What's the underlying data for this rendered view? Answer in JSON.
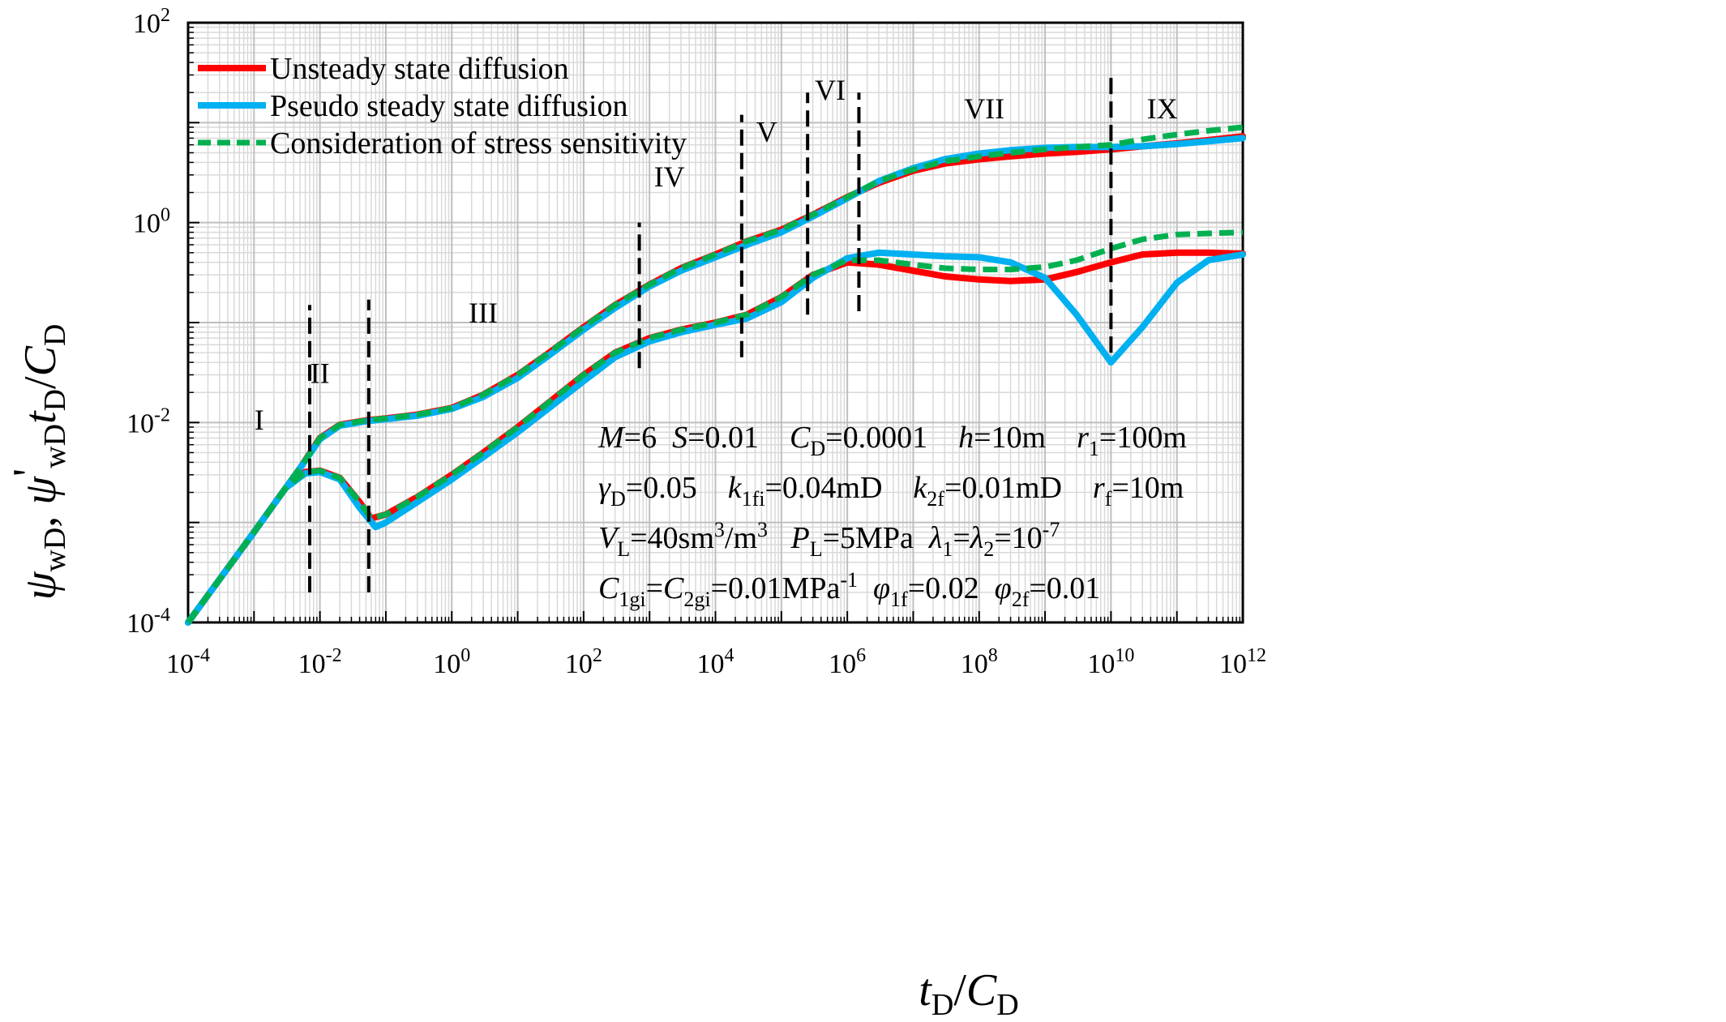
{
  "chart_data": {
    "type": "line",
    "xscale": "log",
    "yscale": "log",
    "xlabel": "t_D/C_D",
    "ylabel": "ψ_wD, ψ'_wD t_D/C_D",
    "xlim": [
      0.0001,
      1000000000000
    ],
    "ylim": [
      0.0001,
      100
    ],
    "grid": true,
    "legend_position": "top-left",
    "x_ticks": [
      {
        "base": "10",
        "exp": "-4"
      },
      {
        "base": "10",
        "exp": "-2"
      },
      {
        "base": "10",
        "exp": "0"
      },
      {
        "base": "10",
        "exp": "2"
      },
      {
        "base": "10",
        "exp": "4"
      },
      {
        "base": "10",
        "exp": "6"
      },
      {
        "base": "10",
        "exp": "8"
      },
      {
        "base": "10",
        "exp": "10"
      },
      {
        "base": "10",
        "exp": "12"
      }
    ],
    "y_ticks": [
      {
        "base": "10",
        "exp": "-4"
      },
      {
        "base": "10",
        "exp": "-2"
      },
      {
        "base": "10",
        "exp": "0"
      },
      {
        "base": "10",
        "exp": "2"
      }
    ],
    "series": [
      {
        "name": "Unsteady state diffusion",
        "color": "#ff0000",
        "style": "solid",
        "pressure": [
          [
            0.0001,
            0.0001
          ],
          [
            0.001,
            0.0008
          ],
          [
            0.003,
            0.0022
          ],
          [
            0.005,
            0.0035
          ],
          [
            0.01,
            0.007
          ],
          [
            0.02,
            0.0095
          ],
          [
            0.05,
            0.0105
          ],
          [
            0.1,
            0.011
          ],
          [
            0.3,
            0.012
          ],
          [
            1,
            0.014
          ],
          [
            3,
            0.019
          ],
          [
            10,
            0.03
          ],
          [
            30,
            0.05
          ],
          [
            100,
            0.09
          ],
          [
            300,
            0.15
          ],
          [
            1000,
            0.24
          ],
          [
            3000,
            0.35
          ],
          [
            10000,
            0.48
          ],
          [
            30000,
            0.65
          ],
          [
            100000,
            0.85
          ],
          [
            300000,
            1.2
          ],
          [
            1000000,
            1.8
          ],
          [
            3000000,
            2.5
          ],
          [
            10000000,
            3.3
          ],
          [
            30000000,
            3.9
          ],
          [
            100000000,
            4.3
          ],
          [
            300000000,
            4.6
          ],
          [
            1000000000,
            4.9
          ],
          [
            3000000000,
            5.1
          ],
          [
            10000000000,
            5.4
          ],
          [
            30000000000,
            5.8
          ],
          [
            100000000000,
            6.2
          ],
          [
            300000000000,
            6.7
          ],
          [
            1000000000000,
            7.3
          ]
        ],
        "derivative": [
          [
            0.0001,
            0.0001
          ],
          [
            0.001,
            0.0008
          ],
          [
            0.003,
            0.0022
          ],
          [
            0.006,
            0.0032
          ],
          [
            0.01,
            0.0033
          ],
          [
            0.02,
            0.0028
          ],
          [
            0.04,
            0.0016
          ],
          [
            0.06,
            0.0011
          ],
          [
            0.1,
            0.0012
          ],
          [
            0.3,
            0.0018
          ],
          [
            1,
            0.003
          ],
          [
            3,
            0.005
          ],
          [
            10,
            0.009
          ],
          [
            30,
            0.016
          ],
          [
            100,
            0.03
          ],
          [
            300,
            0.05
          ],
          [
            1000,
            0.07
          ],
          [
            3000,
            0.085
          ],
          [
            10000,
            0.1
          ],
          [
            30000,
            0.12
          ],
          [
            100000,
            0.18
          ],
          [
            300000,
            0.3
          ],
          [
            1000000,
            0.4
          ],
          [
            3000000,
            0.38
          ],
          [
            10000000,
            0.33
          ],
          [
            30000000,
            0.29
          ],
          [
            100000000,
            0.27
          ],
          [
            300000000,
            0.26
          ],
          [
            1000000000,
            0.27
          ],
          [
            3000000000,
            0.32
          ],
          [
            10000000000,
            0.4
          ],
          [
            30000000000,
            0.48
          ],
          [
            100000000000,
            0.5
          ],
          [
            300000000000,
            0.5
          ],
          [
            1000000000000,
            0.49
          ]
        ]
      },
      {
        "name": "Pseudo steady state diffusion",
        "color": "#00b0f0",
        "style": "solid",
        "pressure": [
          [
            0.0001,
            0.0001
          ],
          [
            0.001,
            0.0008
          ],
          [
            0.003,
            0.0022
          ],
          [
            0.005,
            0.0035
          ],
          [
            0.01,
            0.0068
          ],
          [
            0.02,
            0.0093
          ],
          [
            0.05,
            0.0103
          ],
          [
            0.1,
            0.0108
          ],
          [
            0.3,
            0.0117
          ],
          [
            1,
            0.0137
          ],
          [
            3,
            0.018
          ],
          [
            10,
            0.028
          ],
          [
            30,
            0.047
          ],
          [
            100,
            0.085
          ],
          [
            300,
            0.14
          ],
          [
            1000,
            0.23
          ],
          [
            3000,
            0.33
          ],
          [
            10000,
            0.45
          ],
          [
            30000,
            0.6
          ],
          [
            100000,
            0.8
          ],
          [
            300000,
            1.15
          ],
          [
            1000000,
            1.75
          ],
          [
            3000000,
            2.6
          ],
          [
            10000000,
            3.5
          ],
          [
            30000000,
            4.3
          ],
          [
            100000000,
            4.9
          ],
          [
            300000000,
            5.3
          ],
          [
            1000000000,
            5.6
          ],
          [
            3000000000,
            5.7
          ],
          [
            10000000000,
            5.7
          ],
          [
            30000000000,
            5.8
          ],
          [
            100000000000,
            6.1
          ],
          [
            300000000000,
            6.5
          ],
          [
            1000000000000,
            7.0
          ]
        ],
        "derivative": [
          [
            0.0001,
            0.0001
          ],
          [
            0.001,
            0.0008
          ],
          [
            0.003,
            0.0022
          ],
          [
            0.006,
            0.0031
          ],
          [
            0.01,
            0.0032
          ],
          [
            0.02,
            0.0027
          ],
          [
            0.04,
            0.0014
          ],
          [
            0.07,
            0.0009
          ],
          [
            0.1,
            0.001
          ],
          [
            0.3,
            0.0016
          ],
          [
            1,
            0.0027
          ],
          [
            3,
            0.0045
          ],
          [
            10,
            0.008
          ],
          [
            30,
            0.014
          ],
          [
            100,
            0.026
          ],
          [
            300,
            0.045
          ],
          [
            1000,
            0.065
          ],
          [
            3000,
            0.08
          ],
          [
            10000,
            0.095
          ],
          [
            30000,
            0.11
          ],
          [
            100000,
            0.16
          ],
          [
            300000,
            0.28
          ],
          [
            1000000,
            0.44
          ],
          [
            3000000,
            0.5
          ],
          [
            10000000,
            0.48
          ],
          [
            30000000,
            0.46
          ],
          [
            100000000,
            0.45
          ],
          [
            300000000,
            0.4
          ],
          [
            1000000000,
            0.28
          ],
          [
            3000000000,
            0.12
          ],
          [
            10000000000,
            0.04
          ],
          [
            30000000000,
            0.09
          ],
          [
            100000000000,
            0.25
          ],
          [
            300000000000,
            0.42
          ],
          [
            1000000000000,
            0.48
          ]
        ]
      },
      {
        "name": "Consideration of stress sensitivity",
        "color": "#00b050",
        "style": "dashed",
        "pressure": [
          [
            0.0001,
            0.0001
          ],
          [
            0.001,
            0.0008
          ],
          [
            0.003,
            0.0022
          ],
          [
            0.005,
            0.0035
          ],
          [
            0.01,
            0.007
          ],
          [
            0.02,
            0.0095
          ],
          [
            0.05,
            0.0105
          ],
          [
            0.1,
            0.011
          ],
          [
            0.3,
            0.012
          ],
          [
            1,
            0.014
          ],
          [
            3,
            0.019
          ],
          [
            10,
            0.03
          ],
          [
            30,
            0.05
          ],
          [
            100,
            0.09
          ],
          [
            300,
            0.15
          ],
          [
            1000,
            0.24
          ],
          [
            3000,
            0.35
          ],
          [
            10000,
            0.48
          ],
          [
            30000,
            0.65
          ],
          [
            100000,
            0.85
          ],
          [
            300000,
            1.2
          ],
          [
            1000000,
            1.8
          ],
          [
            3000000,
            2.6
          ],
          [
            10000000,
            3.4
          ],
          [
            30000000,
            4.1
          ],
          [
            100000000,
            4.6
          ],
          [
            300000000,
            5.0
          ],
          [
            1000000000,
            5.4
          ],
          [
            3000000000,
            5.7
          ],
          [
            10000000000,
            6.0
          ],
          [
            30000000000,
            6.8
          ],
          [
            100000000000,
            7.6
          ],
          [
            300000000000,
            8.3
          ],
          [
            1000000000000,
            9.0
          ]
        ],
        "derivative": [
          [
            0.0001,
            0.0001
          ],
          [
            0.001,
            0.0008
          ],
          [
            0.003,
            0.0022
          ],
          [
            0.006,
            0.0032
          ],
          [
            0.01,
            0.0033
          ],
          [
            0.02,
            0.0028
          ],
          [
            0.04,
            0.0016
          ],
          [
            0.06,
            0.0011
          ],
          [
            0.1,
            0.0012
          ],
          [
            0.3,
            0.0018
          ],
          [
            1,
            0.003
          ],
          [
            3,
            0.005
          ],
          [
            10,
            0.009
          ],
          [
            30,
            0.016
          ],
          [
            100,
            0.03
          ],
          [
            300,
            0.05
          ],
          [
            1000,
            0.07
          ],
          [
            3000,
            0.085
          ],
          [
            10000,
            0.1
          ],
          [
            30000,
            0.12
          ],
          [
            100000,
            0.18
          ],
          [
            300000,
            0.3
          ],
          [
            1000000,
            0.42
          ],
          [
            3000000,
            0.42
          ],
          [
            10000000,
            0.38
          ],
          [
            30000000,
            0.35
          ],
          [
            100000000,
            0.34
          ],
          [
            300000000,
            0.34
          ],
          [
            1000000000,
            0.36
          ],
          [
            3000000000,
            0.42
          ],
          [
            10000000000,
            0.55
          ],
          [
            30000000000,
            0.68
          ],
          [
            100000000000,
            0.76
          ],
          [
            300000000000,
            0.78
          ],
          [
            1000000000000,
            0.8
          ]
        ]
      }
    ],
    "boundaries": [
      {
        "x": 0.007,
        "ymin": 0.0002,
        "ymax": 0.15
      },
      {
        "x": 0.055,
        "ymin": 0.0002,
        "ymax": 0.17
      },
      {
        "x": 700,
        "ymin": 0.035,
        "ymax": 1.0
      },
      {
        "x": 25000,
        "ymin": 0.045,
        "ymax": 12
      },
      {
        "x": 250000,
        "ymin": 0.12,
        "ymax": 20
      },
      {
        "x": 1500000,
        "ymin": 0.13,
        "ymax": 20
      },
      {
        "x": 10000000000,
        "ymin": 0.05,
        "ymax": 30
      }
    ],
    "region_labels": [
      {
        "text": "I",
        "x": 0.0012,
        "y": 0.0085
      },
      {
        "text": "II",
        "x": 0.01,
        "y": 0.025
      },
      {
        "text": "III",
        "x": 3,
        "y": 0.1
      },
      {
        "text": "IV",
        "x": 2000,
        "y": 2.3
      },
      {
        "text": "V",
        "x": 60000,
        "y": 6.5
      },
      {
        "text": "VI",
        "x": 550000,
        "y": 17
      },
      {
        "text": "VII",
        "x": 120000000,
        "y": 11
      },
      {
        "text": "IX",
        "x": 60000000000,
        "y": 11
      }
    ],
    "parameters": [
      [
        {
          "t": "M",
          "i": true
        },
        {
          "t": "=6  "
        },
        {
          "t": "S",
          "i": true
        },
        {
          "t": "=0.01    "
        },
        {
          "t": "C",
          "i": true
        },
        {
          "t": "D",
          "sub": true
        },
        {
          "t": "=0.0001    "
        },
        {
          "t": "h",
          "i": true
        },
        {
          "t": "=10m    "
        },
        {
          "t": "r",
          "i": true
        },
        {
          "t": "1",
          "sub": true
        },
        {
          "t": "=100m"
        }
      ],
      [
        {
          "t": "γ",
          "i": true
        },
        {
          "t": "D",
          "sub": true
        },
        {
          "t": "=0.05    "
        },
        {
          "t": "k",
          "i": true
        },
        {
          "t": "1fi",
          "sub": true
        },
        {
          "t": "=0.04mD    "
        },
        {
          "t": "k",
          "i": true
        },
        {
          "t": "2f",
          "sub": true
        },
        {
          "t": "=0.01mD    "
        },
        {
          "t": "r",
          "i": true
        },
        {
          "t": "f",
          "sub": true
        },
        {
          "t": "=10m"
        }
      ],
      [
        {
          "t": "V",
          "i": true
        },
        {
          "t": "L",
          "sub": true
        },
        {
          "t": "=40sm"
        },
        {
          "t": "3",
          "sup": true
        },
        {
          "t": "/m"
        },
        {
          "t": "3",
          "sup": true
        },
        {
          "t": "   "
        },
        {
          "t": "P",
          "i": true
        },
        {
          "t": "L",
          "sub": true
        },
        {
          "t": "=5MPa  "
        },
        {
          "t": "λ",
          "i": true
        },
        {
          "t": "1",
          "sub": true
        },
        {
          "t": "="
        },
        {
          "t": "λ",
          "i": true
        },
        {
          "t": "2",
          "sub": true
        },
        {
          "t": "=10"
        },
        {
          "t": "-7",
          "sup": true
        }
      ],
      [
        {
          "t": "C",
          "i": true
        },
        {
          "t": "1gi",
          "sub": true
        },
        {
          "t": "="
        },
        {
          "t": "C",
          "i": true
        },
        {
          "t": "2gi",
          "sub": true
        },
        {
          "t": "=0.01MPa"
        },
        {
          "t": "-1",
          "sup": true
        },
        {
          "t": "  "
        },
        {
          "t": "φ",
          "i": true
        },
        {
          "t": "1f",
          "sub": true
        },
        {
          "t": "=0.02  "
        },
        {
          "t": "φ",
          "i": true
        },
        {
          "t": "2f",
          "sub": true
        },
        {
          "t": "=0.01"
        }
      ]
    ]
  }
}
